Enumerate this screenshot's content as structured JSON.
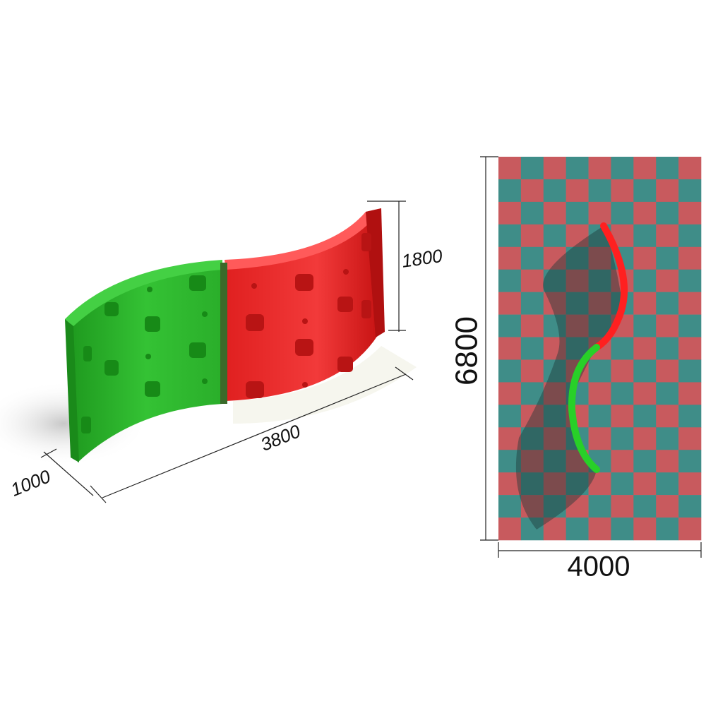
{
  "dimensions": {
    "height": "1800",
    "length": "3800",
    "depth": "1000",
    "area_length": "6800",
    "area_width": "4000"
  }
}
